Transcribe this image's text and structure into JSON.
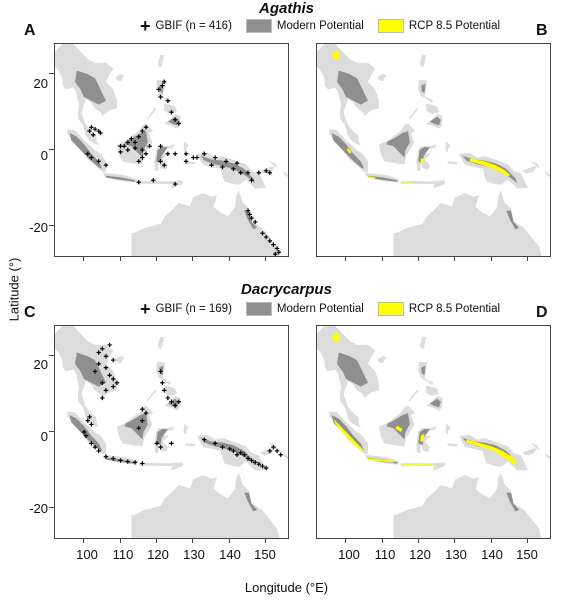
{
  "colors": {
    "land": "#dcdcdc",
    "modern": "#8f8f8f",
    "rcp": "#ffff00",
    "points": "#000000",
    "frame": "#444444"
  },
  "figure": {
    "y_axis_label": "Latitude (°)",
    "x_axis_label": "Longitude (°E)",
    "x_ticks": [
      "100",
      "110",
      "120",
      "130",
      "140",
      "150"
    ],
    "y_ticks": [
      "20",
      "0",
      "-20"
    ],
    "panels": {
      "A": "A",
      "B": "B",
      "C": "C",
      "D": "D"
    },
    "rows": [
      {
        "title": "Agathis",
        "legend": {
          "gbif": "GBIF (n = 416)",
          "modern": "Modern Potential",
          "rcp": "RCP 8.5 Potential"
        }
      },
      {
        "title": "Dacrycarpus",
        "legend": {
          "gbif": "GBIF (n = 169)",
          "modern": "Modern Potential",
          "rcp": "RCP 8.5 Potential"
        }
      }
    ]
  },
  "chart_data": {
    "type": "map",
    "xlim": [
      92,
      156
    ],
    "ylim": [
      -28,
      28
    ],
    "agathis_points": [
      [
        101.5,
        5
      ],
      [
        102,
        6
      ],
      [
        103,
        5.5
      ],
      [
        102.5,
        4
      ],
      [
        104,
        5
      ],
      [
        104.5,
        4.5
      ],
      [
        101,
        -1
      ],
      [
        102,
        -2
      ],
      [
        104,
        -3
      ],
      [
        106,
        -4
      ],
      [
        110,
        1
      ],
      [
        111,
        1
      ],
      [
        112,
        2
      ],
      [
        113,
        3
      ],
      [
        114,
        2
      ],
      [
        115,
        3.5
      ],
      [
        116,
        5
      ],
      [
        117,
        6
      ],
      [
        116,
        0
      ],
      [
        117,
        -1
      ],
      [
        116,
        -2
      ],
      [
        115,
        -3
      ],
      [
        114,
        0.5
      ],
      [
        118,
        1
      ],
      [
        112,
        0
      ],
      [
        110,
        -0.5
      ],
      [
        121,
        14
      ],
      [
        121.5,
        17
      ],
      [
        122,
        18
      ],
      [
        120.5,
        16
      ],
      [
        123,
        13
      ],
      [
        124,
        10
      ],
      [
        125,
        8
      ],
      [
        126,
        7
      ],
      [
        121,
        1
      ],
      [
        123,
        -1
      ],
      [
        121,
        -3
      ],
      [
        122,
        -4
      ],
      [
        125,
        -1
      ],
      [
        128,
        -1
      ],
      [
        128,
        -3
      ],
      [
        130,
        -2
      ],
      [
        131,
        -2
      ],
      [
        133,
        -1
      ],
      [
        136,
        -2
      ],
      [
        139,
        -3
      ],
      [
        141,
        -5
      ],
      [
        143,
        -6
      ],
      [
        145,
        -6
      ],
      [
        148,
        -6
      ],
      [
        150,
        -5.5
      ],
      [
        151,
        -6
      ],
      [
        146,
        -8
      ],
      [
        145,
        -16
      ],
      [
        145.5,
        -17
      ],
      [
        146,
        -18
      ],
      [
        147,
        -19
      ],
      [
        149,
        -22
      ],
      [
        150,
        -23
      ],
      [
        151,
        -24
      ],
      [
        152,
        -25
      ],
      [
        153,
        -26
      ],
      [
        153.5,
        -27
      ],
      [
        152.5,
        -27.5
      ],
      [
        119,
        -8
      ],
      [
        115,
        -8.5
      ],
      [
        125,
        -9
      ],
      [
        135,
        -4
      ],
      [
        138,
        -4.5
      ],
      [
        142,
        -3.5
      ]
    ],
    "dacrycarpus_points": [
      [
        101,
        3
      ],
      [
        101.5,
        4
      ],
      [
        102,
        2
      ],
      [
        100,
        0
      ],
      [
        100.5,
        -1
      ],
      [
        102,
        -3
      ],
      [
        103,
        -4
      ],
      [
        104,
        -5
      ],
      [
        106,
        -6.5
      ],
      [
        108,
        -7
      ],
      [
        110,
        -7.5
      ],
      [
        112,
        -7.8
      ],
      [
        114,
        -8
      ],
      [
        116,
        -8.3
      ],
      [
        104,
        21
      ],
      [
        105,
        22
      ],
      [
        106,
        20
      ],
      [
        107,
        23
      ],
      [
        108,
        19
      ],
      [
        104,
        18
      ],
      [
        103,
        16
      ],
      [
        106,
        17
      ],
      [
        107,
        15
      ],
      [
        108,
        14
      ],
      [
        109,
        13
      ],
      [
        108,
        12
      ],
      [
        105,
        13
      ],
      [
        106,
        11
      ],
      [
        105,
        9
      ],
      [
        115,
        1
      ],
      [
        116,
        3
      ],
      [
        117,
        5
      ],
      [
        116,
        6
      ],
      [
        121,
        16
      ],
      [
        121.5,
        13
      ],
      [
        122,
        11
      ],
      [
        123,
        9
      ],
      [
        124,
        8
      ],
      [
        125,
        7
      ],
      [
        126,
        8
      ],
      [
        120,
        -3
      ],
      [
        121,
        -4
      ],
      [
        124,
        -3
      ],
      [
        133,
        -2
      ],
      [
        136,
        -3
      ],
      [
        138,
        -4
      ],
      [
        140,
        -4.5
      ],
      [
        141,
        -5
      ],
      [
        142,
        -6
      ],
      [
        143,
        -5.5
      ],
      [
        144,
        -6
      ],
      [
        145,
        -7
      ],
      [
        146,
        -7.5
      ],
      [
        147,
        -8
      ],
      [
        148,
        -8.5
      ],
      [
        149,
        -9
      ],
      [
        150,
        -9.5
      ],
      [
        151,
        -5
      ],
      [
        152,
        -4
      ],
      [
        153,
        -5
      ],
      [
        154,
        -6
      ]
    ]
  }
}
